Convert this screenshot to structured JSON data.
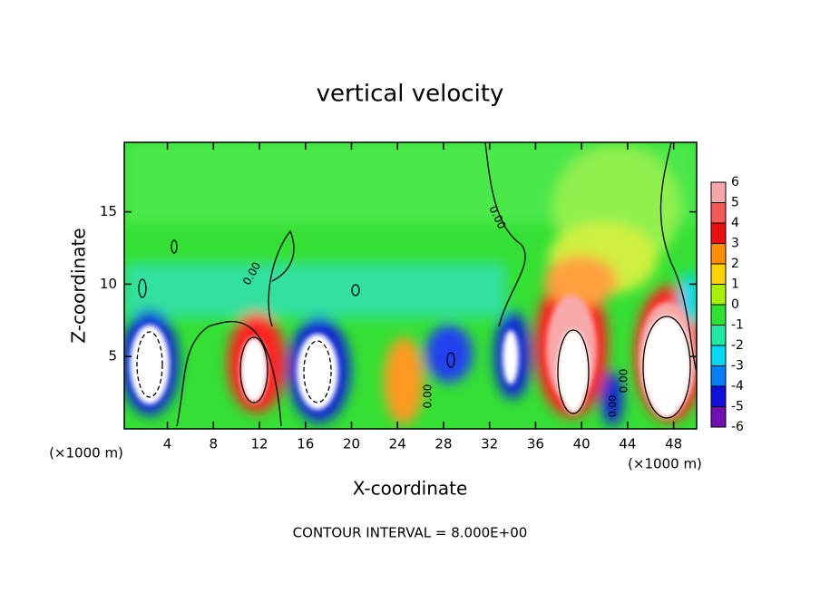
{
  "chart_data": {
    "type": "contour",
    "title": "vertical velocity",
    "x_label": "X-coordinate",
    "y_label": "Z-coordinate",
    "x_unit_label": "(×1000 m)",
    "annotation": "CONTOUR INTERVAL = 8.000E+00",
    "contour_labels": [
      "0.00",
      "0.00",
      "0.00",
      "0.00",
      "0.00"
    ],
    "xlim": [
      0.25,
      50
    ],
    "ylim": [
      0,
      19.8
    ],
    "xticks": [
      4,
      8,
      12,
      16,
      20,
      24,
      28,
      32,
      36,
      40,
      44,
      48
    ],
    "yticks": [
      5,
      10,
      15
    ],
    "colorbar": {
      "levels": [
        6,
        5,
        4,
        3,
        2,
        1,
        0,
        -1,
        -2,
        -3,
        -4,
        -5,
        -6
      ],
      "colors": [
        "#f6a8a8",
        "#f25a5a",
        "#ec1010",
        "#ff8c00",
        "#ffd200",
        "#a8f000",
        "#30e030",
        "#20e8a0",
        "#00d8f0",
        "#0080ff",
        "#1010d8",
        "#7010b0"
      ]
    }
  }
}
